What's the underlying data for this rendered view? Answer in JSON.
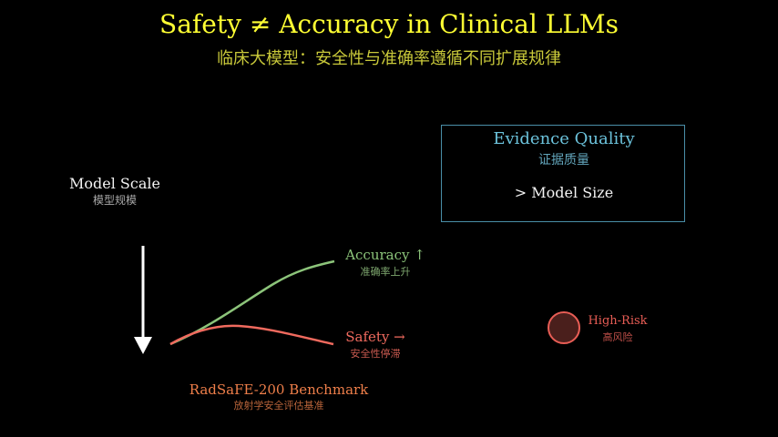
{
  "title": "Safety ≠ Accuracy in Clinical LLMs",
  "subtitle": "临床大模型：安全性与准确率遵循不同扩展规律",
  "model_scale": {
    "label": "Model Scale",
    "label_cn": "模型规模"
  },
  "evidence": {
    "title": "Evidence Quality",
    "title_cn": "证据质量",
    "comparison": "> Model Size"
  },
  "accuracy": {
    "label": "Accuracy ↑",
    "label_cn": "准确率上升",
    "color": "#8cc47a"
  },
  "safety": {
    "label": "Safety →",
    "label_cn": "安全性停滞",
    "color": "#f06a5e"
  },
  "high_risk": {
    "label": "High-Risk",
    "label_cn": "高风险",
    "color": "#e85d55"
  },
  "benchmark": {
    "label": "RadSaFE-200 Benchmark",
    "label_cn": "放射学安全评估基准"
  },
  "colors": {
    "background": "#000000",
    "title": "#ffff33",
    "evidence_border": "#4a8fa8",
    "arrow": "#ffffff"
  }
}
